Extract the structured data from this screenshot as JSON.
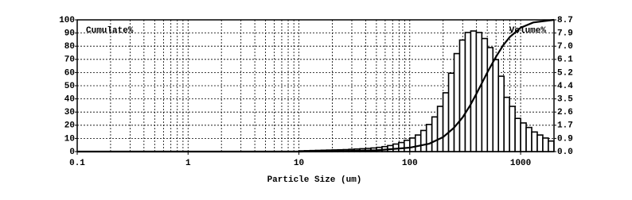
{
  "chart_data": {
    "type": "histogram",
    "xlabel": "Particle Size (um)",
    "ylabel": "Cumulate%",
    "y2label": "Volume%",
    "xscale": "log",
    "xlim": [
      0.1,
      2000
    ],
    "xticks": [
      0.1,
      1,
      10,
      100,
      1000
    ],
    "minor_grid": true,
    "grid": true,
    "ylim": [
      0,
      100
    ],
    "yticks": [
      0,
      10,
      20,
      30,
      40,
      50,
      60,
      70,
      80,
      90,
      100
    ],
    "y2lim": [
      0,
      8.74
    ],
    "y2ticks": [
      {
        "value": 0,
        "label": "0.0"
      },
      {
        "value": 0.874,
        "label": "0.9"
      },
      {
        "value": 1.748,
        "label": "1.7"
      },
      {
        "value": 2.622,
        "label": "2.6"
      },
      {
        "value": 3.496,
        "label": "3.5"
      },
      {
        "value": 4.37,
        "label": "4.4"
      },
      {
        "value": 5.244,
        "label": "5.2"
      },
      {
        "value": 6.118,
        "label": "6.1"
      },
      {
        "value": 6.992,
        "label": "7.0"
      },
      {
        "value": 7.866,
        "label": "7.9"
      },
      {
        "value": 8.74,
        "label": "8.7"
      }
    ],
    "color": "#000000",
    "bins": [
      10,
      11.22,
      12.59,
      14.13,
      15.85,
      17.78,
      19.95,
      22.39,
      25.12,
      28.18,
      31.62,
      35.48,
      39.81,
      44.67,
      50.12,
      56.23,
      63.1,
      70.79,
      79.43,
      89.13,
      100,
      112.2,
      125.9,
      141.3,
      158.5,
      177.8,
      199.5,
      223.9,
      251.2,
      281.8,
      316.2,
      354.8,
      398.1,
      446.7,
      501.2,
      562.3,
      631,
      707.9,
      794.3,
      891.3,
      1000,
      1122,
      1259,
      1413,
      1585,
      1778,
      1995
    ],
    "histogram": {
      "axis": "y2",
      "values": [
        0.05,
        0.06,
        0.07,
        0.08,
        0.09,
        0.1,
        0.11,
        0.12,
        0.13,
        0.15,
        0.17,
        0.19,
        0.21,
        0.24,
        0.28,
        0.33,
        0.4,
        0.5,
        0.6,
        0.75,
        0.9,
        1.1,
        1.4,
        1.8,
        2.3,
        3.0,
        3.9,
        5.2,
        6.5,
        7.4,
        7.9,
        8.0,
        7.9,
        7.5,
        6.9,
        6.1,
        5.0,
        3.6,
        3.0,
        2.2,
        1.9,
        1.6,
        1.3,
        1.1,
        0.9,
        0.7
      ]
    },
    "cumulative": {
      "x": [
        0.1,
        10,
        20,
        50,
        100,
        150,
        200,
        250,
        300,
        350,
        400,
        500,
        600,
        700,
        800,
        1000,
        1300,
        2000
      ],
      "values": [
        0,
        0,
        0.2,
        1,
        3,
        6,
        11,
        18,
        26,
        35,
        44,
        60,
        72,
        81,
        87,
        94,
        98,
        100
      ]
    }
  }
}
